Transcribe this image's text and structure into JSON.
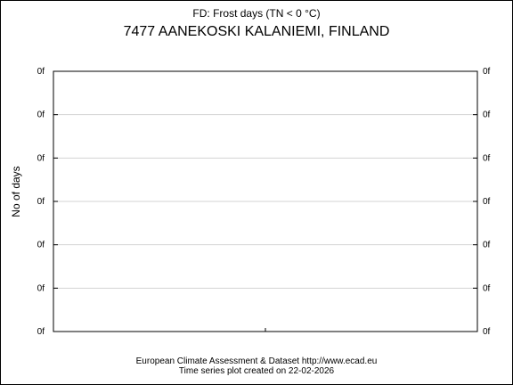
{
  "chart_data": {
    "type": "line",
    "title": "FD: Frost days (TN < 0 °C)",
    "subtitle": "7477 AANEKOSKI KALANIEMI, FINLAND",
    "ylabel": "No of days",
    "xlabel": "",
    "y_tick_labels": [
      "0f",
      "0f",
      "0f",
      "0f",
      "0f",
      "0f",
      "0f"
    ],
    "grid": true,
    "series": [],
    "x": []
  },
  "footer": {
    "source": "European Climate Assessment & Dataset  http://www.ecad.eu",
    "created": "Time series plot created on 22-02-2026"
  },
  "colors": {
    "axis": "#000000",
    "grid": "#d3d3d3",
    "background": "#ffffff"
  }
}
